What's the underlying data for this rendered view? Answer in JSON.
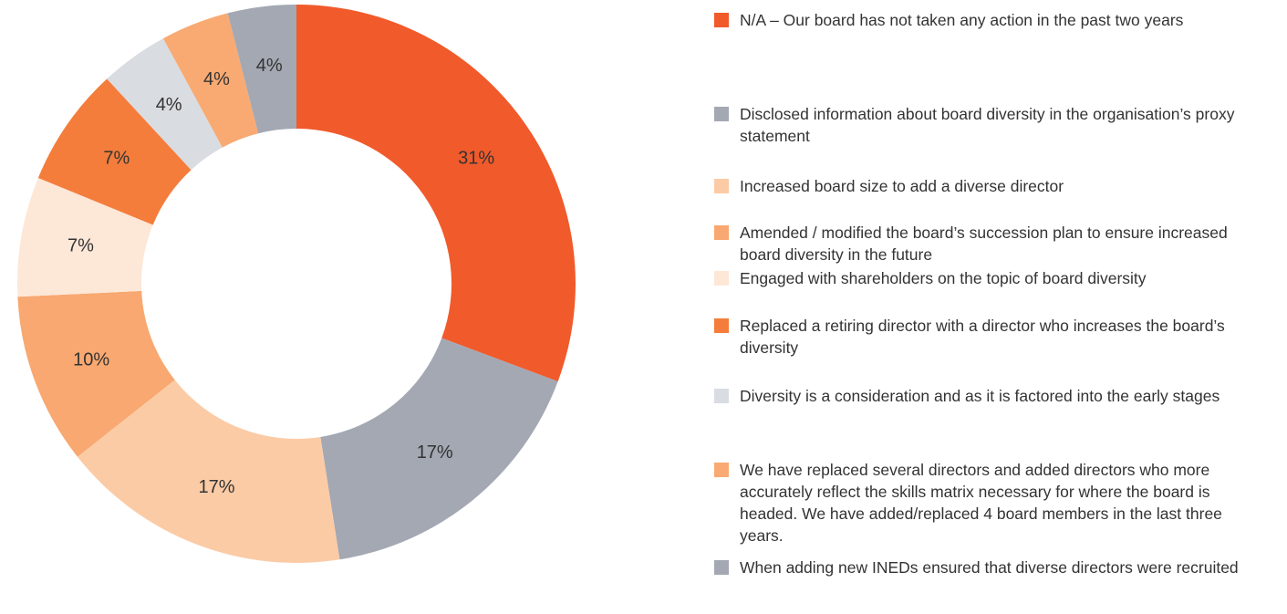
{
  "chart_data": {
    "type": "donut",
    "categories": [
      "N/A – Our board has not taken any action in the past two years",
      "Disclosed information about board diversity in the organisation’s proxy statement",
      "Increased board size to add a diverse director",
      "Amended / modified the board’s succession plan to ensure increased board diversity in the future",
      "Engaged with shareholders on the topic of board diversity",
      "Replaced a retiring director with a director who increases the board’s diversity",
      "Diversity is a consideration and as it is factored into the early stages",
      "We have replaced several directors and added directors who more accurately reflect the skills matrix necessary for where the board is headed. We have added/replaced 4 board members in the last three years.",
      "When adding new INEDs ensured that diverse directors were recruited"
    ],
    "values": [
      31,
      17,
      17,
      10,
      7,
      7,
      4,
      4,
      4
    ],
    "value_labels": [
      "31%",
      "17%",
      "17%",
      "10%",
      "7%",
      "7%",
      "4%",
      "4%",
      "4%"
    ],
    "colors": [
      "#f15a2b",
      "#a3a8b3",
      "#fbcba6",
      "#f8a870",
      "#fde7d7",
      "#f47d3c",
      "#d9dce1",
      "#f8aa72",
      "#a3a8b3"
    ],
    "legend": "right"
  }
}
